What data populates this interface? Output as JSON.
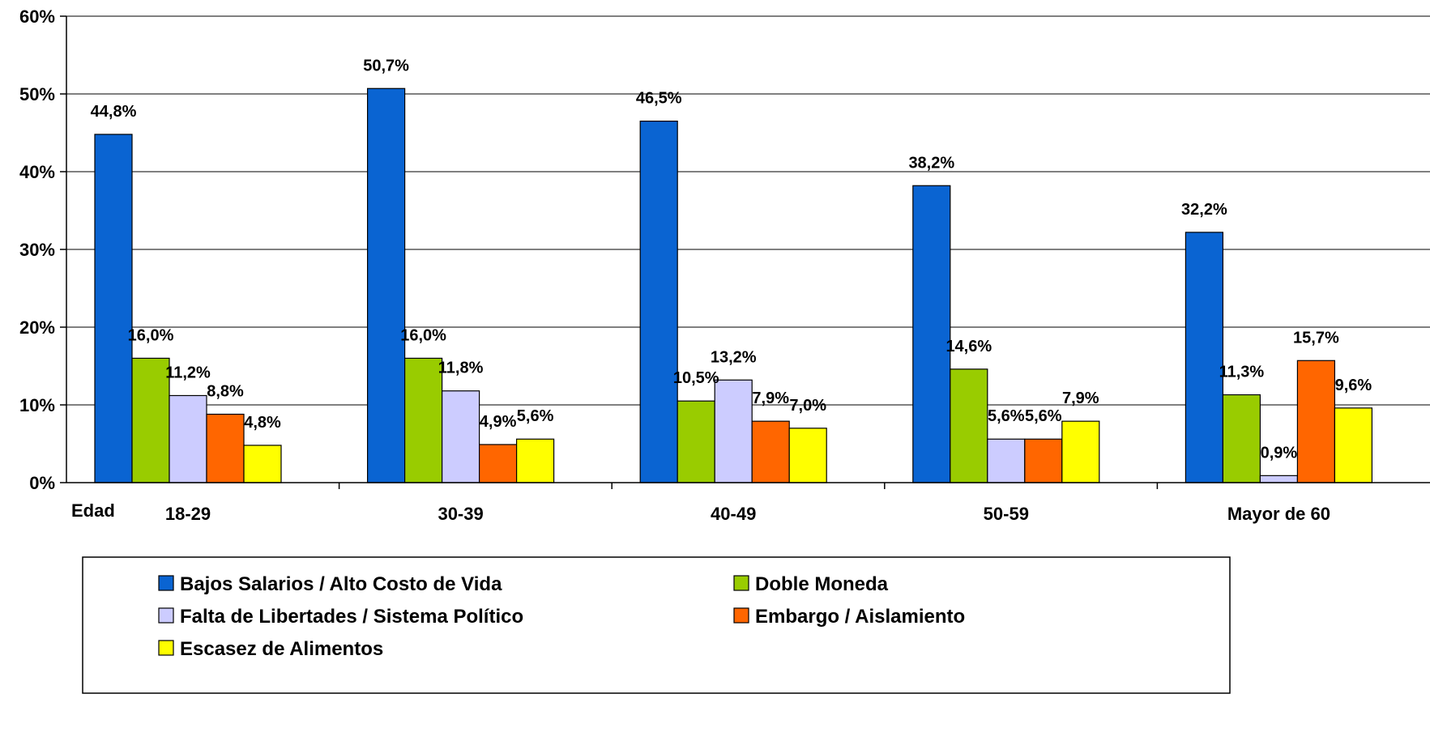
{
  "chart_data": {
    "type": "bar",
    "categories": [
      "18-29",
      "30-39",
      "40-49",
      "50-59",
      "Mayor de 60"
    ],
    "category_axis_title": "Edad",
    "series": [
      {
        "name": "Bajos Salarios / Alto Costo de Vida",
        "color": "#0a64d2",
        "values": [
          44.8,
          50.7,
          46.5,
          38.2,
          32.2
        ],
        "labels": [
          "44,8%",
          "50,7%",
          "46,5%",
          "38,2%",
          "32,2%"
        ]
      },
      {
        "name": "Doble Moneda",
        "color": "#99cc00",
        "values": [
          16.0,
          16.0,
          10.5,
          14.6,
          11.3
        ],
        "labels": [
          "16,0%",
          "16,0%",
          "10,5%",
          "14,6%",
          "11,3%"
        ]
      },
      {
        "name": "Falta de Libertades / Sistema Político",
        "color": "#ccccff",
        "values": [
          11.2,
          11.8,
          13.2,
          5.6,
          0.9
        ],
        "labels": [
          "11,2%",
          "11,8%",
          "13,2%",
          "5,6%",
          "0,9%"
        ]
      },
      {
        "name": "Embargo / Aislamiento",
        "color": "#ff6600",
        "values": [
          8.8,
          4.9,
          7.9,
          5.6,
          15.7
        ],
        "labels": [
          "8,8%",
          "4,9%",
          "7,9%",
          "5,6%",
          "15,7%"
        ]
      },
      {
        "name": "Escasez de Alimentos",
        "color": "#ffff00",
        "values": [
          4.8,
          5.6,
          7.0,
          7.9,
          9.6
        ],
        "labels": [
          "4,8%",
          "5,6%",
          "7,0%",
          "7,9%",
          "9,6%"
        ]
      }
    ],
    "ylim": [
      0,
      60
    ],
    "y_ticks": [
      0,
      10,
      20,
      30,
      40,
      50,
      60
    ],
    "y_tick_labels": [
      "0%",
      "10%",
      "20%",
      "30%",
      "40%",
      "50%",
      "60%"
    ],
    "grid": true,
    "legend_position": "bottom"
  }
}
